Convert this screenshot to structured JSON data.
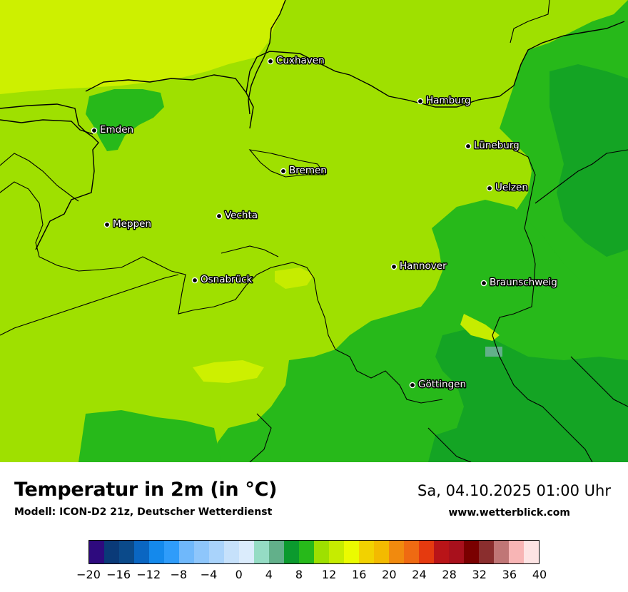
{
  "map": {
    "cities": [
      {
        "name": "Cuxhaven"
      },
      {
        "name": "Hamburg"
      },
      {
        "name": "Emden"
      },
      {
        "name": "Lüneburg"
      },
      {
        "name": "Bremen"
      },
      {
        "name": "Uelzen"
      },
      {
        "name": "Vechta"
      },
      {
        "name": "Meppen"
      },
      {
        "name": "Hannover"
      },
      {
        "name": "Osnabrück"
      },
      {
        "name": "Braunschweig"
      },
      {
        "name": "Göttingen"
      }
    ]
  },
  "legend": {
    "title": "Temperatur in 2m (in °C)",
    "model": "Modell: ICON-D2 21z, Deutscher Wetterdienst",
    "datetime": "Sa, 04.10.2025 01:00 Uhr",
    "website": "www.wetterblick.com",
    "colors": [
      "#2e0a7e",
      "#0a3a78",
      "#0b4a8a",
      "#0a66c2",
      "#1489ec",
      "#2f9cfa",
      "#6fb8fb",
      "#8ec6fb",
      "#a9d3fb",
      "#c6e1fb",
      "#dbecfc",
      "#95dcc4",
      "#62b08a",
      "#0b9a2e",
      "#27b91a",
      "#9ee000",
      "#c6ec00",
      "#ebfb00",
      "#f2d200",
      "#f3ba00",
      "#f18a0e",
      "#ef6a12",
      "#e53a0f",
      "#b91418",
      "#a8101c",
      "#7a0000",
      "#8a2e2e",
      "#c07676",
      "#f8b5b5",
      "#fde4e4"
    ],
    "ticks": [
      "−20",
      "−16",
      "−12",
      "−8",
      "−4",
      "0",
      "4",
      "8",
      "12",
      "16",
      "20",
      "24",
      "28",
      "32",
      "36",
      "40"
    ]
  }
}
